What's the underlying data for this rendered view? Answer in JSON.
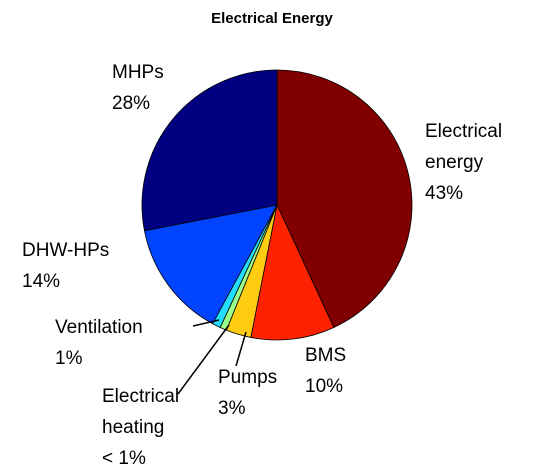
{
  "chart_data": {
    "type": "pie",
    "title": "Electrical Energy",
    "categories": [
      "Electrical energy",
      "BMS",
      "Pumps",
      "Electrical heating",
      "Ventilation",
      "DHW-HPs",
      "MHPs"
    ],
    "values": [
      43,
      10,
      3,
      0.8,
      1,
      14,
      28
    ],
    "value_labels": [
      "43%",
      "10%",
      "3%",
      "< 1%",
      "1%",
      "14%",
      "28%"
    ],
    "colors": [
      "#800000",
      "#ff2200",
      "#ffcc11",
      "#99ff88",
      "#22ddff",
      "#0044ff",
      "#000080"
    ]
  }
}
